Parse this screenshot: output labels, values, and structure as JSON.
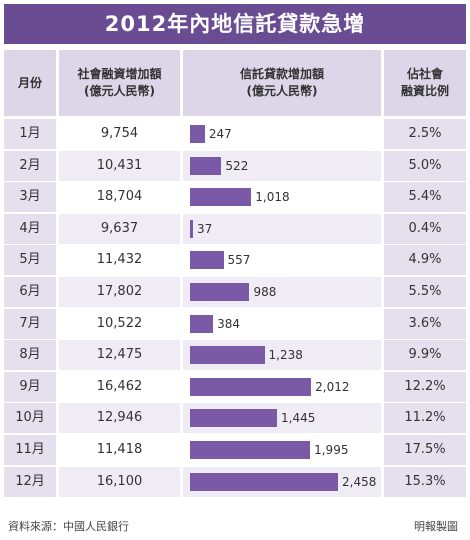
{
  "title": "2012年內地信託貸款急增",
  "headers": {
    "month": "月份",
    "social_line1": "社會融資增加額",
    "social_line2": "(億元人民幣)",
    "trust_line1": "信託貸款增加額",
    "trust_line2": "(億元人民幣)",
    "ratio_line1": "佔社會",
    "ratio_line2": "融資比例"
  },
  "chart_data": {
    "type": "table",
    "columns": [
      "月份",
      "社會融資增加額(億元人民幣)",
      "信託貸款增加額(億元人民幣)",
      "佔社會融資比例"
    ],
    "rows": [
      {
        "month": "1月",
        "social": "9,754",
        "trust": 247,
        "trust_label": "247",
        "ratio": "2.5%"
      },
      {
        "month": "2月",
        "social": "10,431",
        "trust": 522,
        "trust_label": "522",
        "ratio": "5.0%"
      },
      {
        "month": "3月",
        "social": "18,704",
        "trust": 1018,
        "trust_label": "1,018",
        "ratio": "5.4%"
      },
      {
        "month": "4月",
        "social": "9,637",
        "trust": 37,
        "trust_label": "37",
        "ratio": "0.4%"
      },
      {
        "month": "5月",
        "social": "11,432",
        "trust": 557,
        "trust_label": "557",
        "ratio": "4.9%"
      },
      {
        "month": "6月",
        "social": "17,802",
        "trust": 988,
        "trust_label": "988",
        "ratio": "5.5%"
      },
      {
        "month": "7月",
        "social": "10,522",
        "trust": 384,
        "trust_label": "384",
        "ratio": "3.6%"
      },
      {
        "month": "8月",
        "social": "12,475",
        "trust": 1238,
        "trust_label": "1,238",
        "ratio": "9.9%"
      },
      {
        "month": "9月",
        "social": "16,462",
        "trust": 2012,
        "trust_label": "2,012",
        "ratio": "12.2%"
      },
      {
        "month": "10月",
        "social": "12,946",
        "trust": 1445,
        "trust_label": "1,445",
        "ratio": "11.2%"
      },
      {
        "month": "11月",
        "social": "11,418",
        "trust": 1995,
        "trust_label": "1,995",
        "ratio": "17.5%"
      },
      {
        "month": "12月",
        "social": "16,100",
        "trust": 2458,
        "trust_label": "2,458",
        "ratio": "15.3%"
      }
    ],
    "bar_max": 2458,
    "bar_color": "#7a5aa6"
  },
  "footer": {
    "source": "資料來源：中國人民銀行",
    "credit": "明報製圖"
  },
  "colors": {
    "title_bg": "#6a4c93",
    "header_bg": "#ddd5e8",
    "month_bg": "#e6dfee"
  }
}
